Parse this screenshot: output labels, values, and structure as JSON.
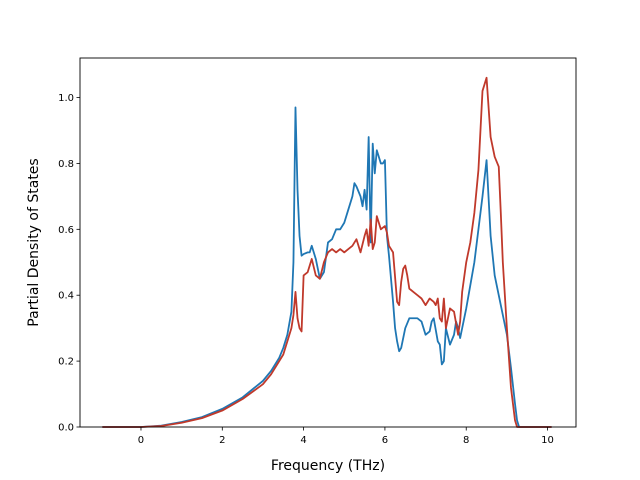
{
  "chart_data": {
    "type": "line",
    "title": "",
    "xlabel": "Frequency (THz)",
    "ylabel": "Partial Density of States",
    "xlim": [
      -1.5,
      10.7
    ],
    "ylim": [
      0,
      1.12
    ],
    "xticks": [
      0,
      2,
      4,
      6,
      8,
      10
    ],
    "yticks": [
      0.0,
      0.2,
      0.4,
      0.6,
      0.8,
      1.0
    ],
    "xtick_labels": [
      "0",
      "2",
      "4",
      "6",
      "8",
      "10"
    ],
    "ytick_labels": [
      "0.0",
      "0.2",
      "0.4",
      "0.6",
      "0.8",
      "1.0"
    ],
    "grid": false,
    "legend": "none",
    "series": [
      {
        "color": "#1f77b4",
        "x": [
          -0.95,
          0,
          0.5,
          1,
          1.5,
          2,
          2.5,
          3,
          3.2,
          3.4,
          3.5,
          3.6,
          3.7,
          3.75,
          3.8,
          3.85,
          3.9,
          3.95,
          4.0,
          4.1,
          4.15,
          4.2,
          4.3,
          4.4,
          4.5,
          4.6,
          4.7,
          4.8,
          4.9,
          5.0,
          5.1,
          5.2,
          5.25,
          5.3,
          5.4,
          5.45,
          5.5,
          5.55,
          5.6,
          5.65,
          5.7,
          5.75,
          5.8,
          5.9,
          5.95,
          6.0,
          6.05,
          6.1,
          6.2,
          6.25,
          6.3,
          6.35,
          6.4,
          6.5,
          6.6,
          6.7,
          6.8,
          6.9,
          7.0,
          7.1,
          7.15,
          7.2,
          7.3,
          7.35,
          7.4,
          7.45,
          7.5,
          7.6,
          7.7,
          7.75,
          7.8,
          7.85,
          7.9,
          8.0,
          8.1,
          8.2,
          8.3,
          8.4,
          8.5,
          8.6,
          8.7,
          8.8,
          9.0,
          9.1,
          9.2,
          9.25,
          9.3,
          10.1
        ],
        "y": [
          0.0,
          0.0,
          0.004,
          0.015,
          0.03,
          0.055,
          0.09,
          0.14,
          0.17,
          0.21,
          0.24,
          0.28,
          0.35,
          0.5,
          0.97,
          0.72,
          0.58,
          0.52,
          0.525,
          0.53,
          0.53,
          0.55,
          0.51,
          0.45,
          0.47,
          0.56,
          0.57,
          0.6,
          0.6,
          0.62,
          0.66,
          0.7,
          0.74,
          0.73,
          0.7,
          0.67,
          0.72,
          0.66,
          0.88,
          0.56,
          0.86,
          0.77,
          0.84,
          0.8,
          0.8,
          0.81,
          0.58,
          0.52,
          0.38,
          0.3,
          0.26,
          0.23,
          0.24,
          0.3,
          0.33,
          0.33,
          0.33,
          0.32,
          0.28,
          0.29,
          0.32,
          0.33,
          0.26,
          0.25,
          0.19,
          0.2,
          0.3,
          0.25,
          0.28,
          0.32,
          0.3,
          0.27,
          0.3,
          0.36,
          0.43,
          0.5,
          0.6,
          0.7,
          0.81,
          0.58,
          0.46,
          0.4,
          0.28,
          0.18,
          0.07,
          0.02,
          0.0,
          0.0
        ]
      },
      {
        "color": "#c0392b",
        "x": [
          -0.95,
          0,
          0.5,
          1,
          1.5,
          2,
          2.5,
          3,
          3.2,
          3.4,
          3.5,
          3.6,
          3.7,
          3.75,
          3.8,
          3.85,
          3.9,
          3.95,
          4.0,
          4.1,
          4.2,
          4.3,
          4.4,
          4.5,
          4.6,
          4.7,
          4.8,
          4.9,
          5.0,
          5.1,
          5.2,
          5.3,
          5.35,
          5.4,
          5.5,
          5.55,
          5.6,
          5.65,
          5.7,
          5.75,
          5.8,
          5.9,
          6.0,
          6.05,
          6.1,
          6.2,
          6.3,
          6.35,
          6.4,
          6.45,
          6.5,
          6.55,
          6.6,
          6.7,
          6.8,
          6.9,
          7.0,
          7.1,
          7.2,
          7.25,
          7.3,
          7.35,
          7.4,
          7.45,
          7.5,
          7.6,
          7.7,
          7.8,
          7.85,
          7.9,
          8.0,
          8.1,
          8.2,
          8.3,
          8.4,
          8.5,
          8.6,
          8.7,
          8.8,
          8.85,
          8.9,
          9.0,
          9.1,
          9.2,
          9.25,
          9.3,
          10.1
        ],
        "y": [
          0.0,
          0.0,
          0.003,
          0.013,
          0.027,
          0.05,
          0.085,
          0.13,
          0.16,
          0.2,
          0.22,
          0.26,
          0.3,
          0.34,
          0.41,
          0.33,
          0.3,
          0.29,
          0.46,
          0.47,
          0.51,
          0.46,
          0.45,
          0.5,
          0.53,
          0.54,
          0.53,
          0.54,
          0.53,
          0.54,
          0.55,
          0.57,
          0.55,
          0.53,
          0.58,
          0.6,
          0.55,
          0.63,
          0.54,
          0.56,
          0.64,
          0.6,
          0.61,
          0.59,
          0.55,
          0.53,
          0.38,
          0.37,
          0.44,
          0.48,
          0.49,
          0.46,
          0.42,
          0.41,
          0.4,
          0.39,
          0.37,
          0.39,
          0.38,
          0.37,
          0.39,
          0.33,
          0.32,
          0.39,
          0.3,
          0.36,
          0.35,
          0.28,
          0.32,
          0.41,
          0.5,
          0.56,
          0.65,
          0.78,
          1.02,
          1.06,
          0.88,
          0.82,
          0.79,
          0.65,
          0.5,
          0.3,
          0.12,
          0.02,
          0.0,
          0.0,
          0.0
        ]
      }
    ]
  }
}
